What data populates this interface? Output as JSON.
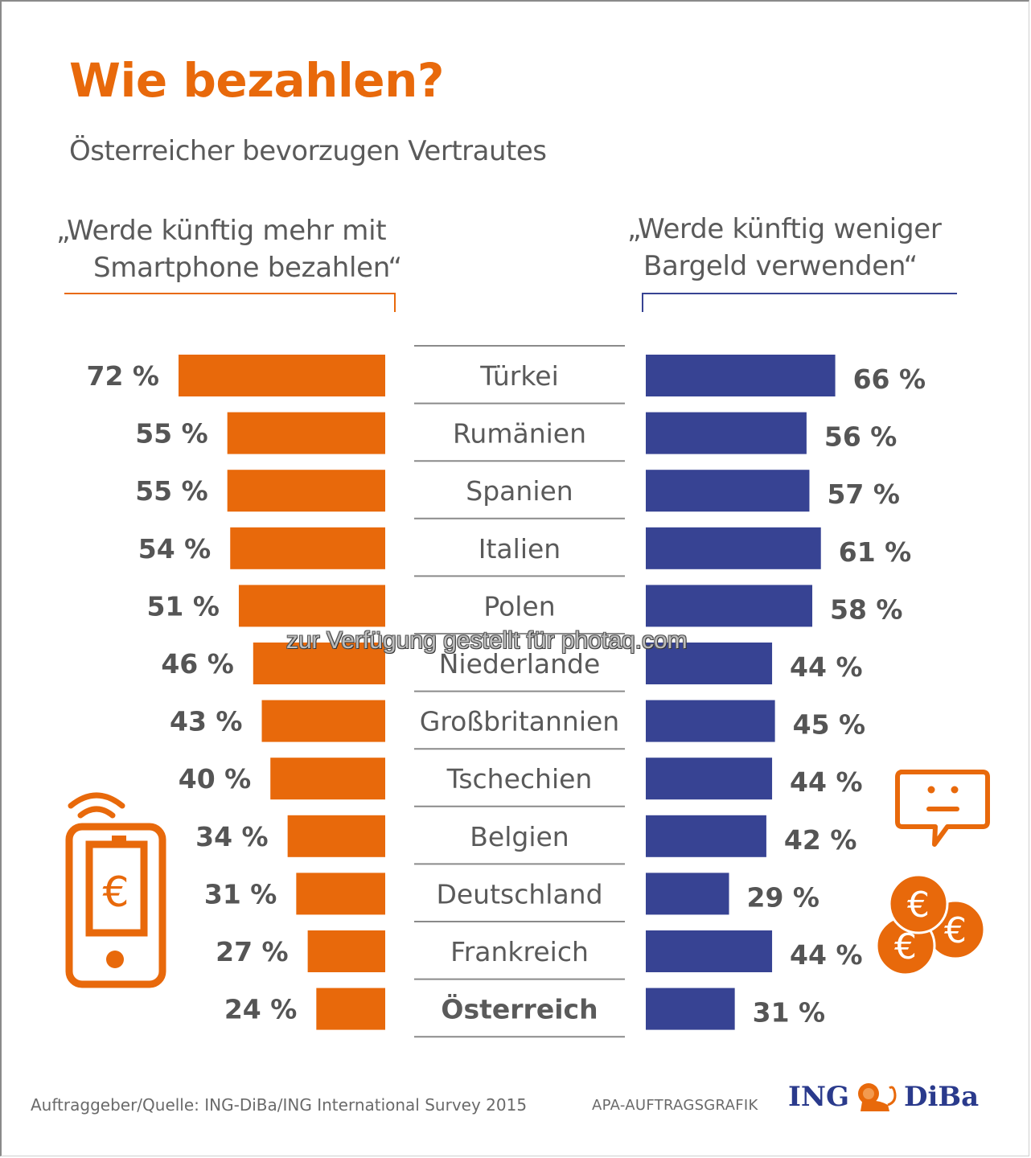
{
  "title": "Wie bezahlen?",
  "subtitle": "Österreicher bevorzugen Vertrautes",
  "left_header": {
    "line1": "„Werde künftig mehr mit",
    "line2": "Smartphone bezahlen“"
  },
  "right_header": {
    "line1": "„Werde künftig weniger",
    "line2": "Bargeld verwenden“"
  },
  "colors": {
    "smartphone": "#E8690B",
    "cash": "#374393",
    "text": "#5a5a5a",
    "divider": "#8a8a8a"
  },
  "watermark": "zur Verfügung gestellt für photaq.com",
  "icons": {
    "left": "smartphone-euro-icon",
    "right_top": "speech-bubble-neutral-face-icon",
    "right_bottom": "euro-coins-icon"
  },
  "footer": {
    "source": "Auftraggeber/Quelle: ING-DiBa/ING International Survey 2015",
    "apa": "APA-AUFTRAGSGRAFIK",
    "logo_left": "ING",
    "logo_right": "DiBa"
  },
  "chart_data": {
    "type": "bar",
    "orientation": "horizontal-diverging",
    "title": "Wie bezahlen?",
    "subtitle": "Österreicher bevorzugen Vertrautes",
    "unit": "%",
    "categories": [
      "Türkei",
      "Rumänien",
      "Spanien",
      "Italien",
      "Polen",
      "Niederlande",
      "Großbritannien",
      "Tschechien",
      "Belgien",
      "Deutschland",
      "Frankreich",
      "Österreich"
    ],
    "highlight_category": "Österreich",
    "series": [
      {
        "name": "„Werde künftig mehr mit Smartphone bezahlen“",
        "side": "left",
        "color": "#E8690B",
        "values": [
          72,
          55,
          55,
          54,
          51,
          46,
          43,
          40,
          34,
          31,
          27,
          24
        ],
        "labels": [
          "72 %",
          "55 %",
          "55 %",
          "54 %",
          "51 %",
          "46 %",
          "43 %",
          "40 %",
          "34 %",
          "31 %",
          "27 %",
          "24 %"
        ]
      },
      {
        "name": "„Werde künftig weniger Bargeld verwenden“",
        "side": "right",
        "color": "#374393",
        "values": [
          66,
          56,
          57,
          61,
          58,
          44,
          45,
          44,
          42,
          29,
          44,
          31
        ],
        "labels": [
          "66 %",
          "56 %",
          "57 %",
          "61 %",
          "58 %",
          "44 %",
          "45 %",
          "44 %",
          "42 %",
          "29 %",
          "44 %",
          "31 %"
        ]
      }
    ],
    "xlim": [
      0,
      72
    ],
    "grid": false,
    "legend": "top (headers above each side)"
  }
}
